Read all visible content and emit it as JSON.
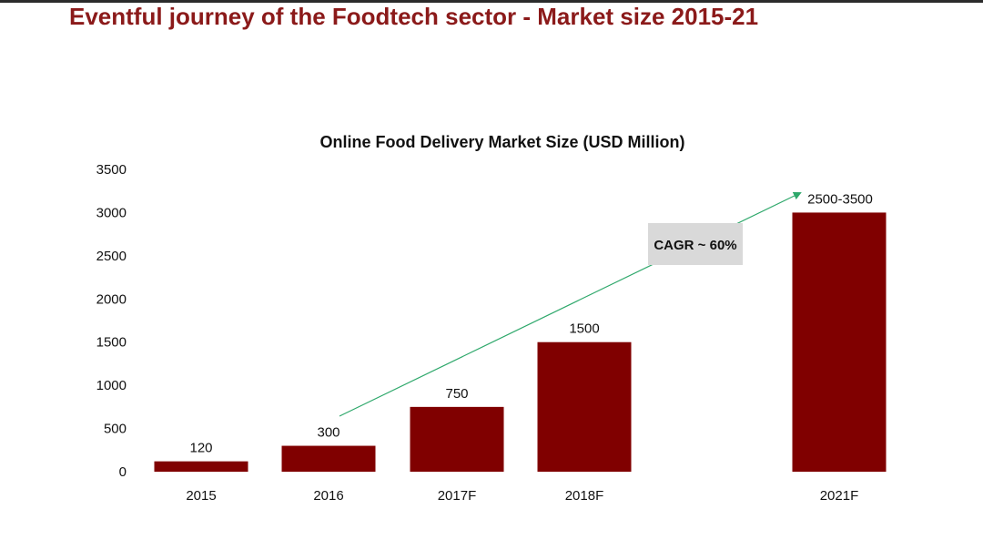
{
  "page": {
    "title": "Eventful journey of the Foodtech sector - Market size 2015-21"
  },
  "colors": {
    "bar": "#800000",
    "title": "#8b1a1a",
    "trend": "#2ea86b",
    "cagr_box": "#d9d9d9"
  },
  "chart_data": {
    "type": "bar",
    "title": "Online Food Delivery Market Size (USD Million)",
    "xlabel": "",
    "ylabel": "",
    "ylim": [
      0,
      3500
    ],
    "yticks": [
      0,
      500,
      1000,
      1500,
      2000,
      2500,
      3000,
      3500
    ],
    "grid": false,
    "categories": [
      "2015",
      "2016",
      "2017F",
      "2018F",
      "2021F"
    ],
    "values": [
      120,
      300,
      750,
      1500,
      3000
    ],
    "data_labels": [
      "120",
      "300",
      "750",
      "1500",
      "2500-3500"
    ],
    "annotation": {
      "text": "CAGR ~ 60%",
      "from_category": "2016",
      "to_category": "2021F"
    }
  }
}
